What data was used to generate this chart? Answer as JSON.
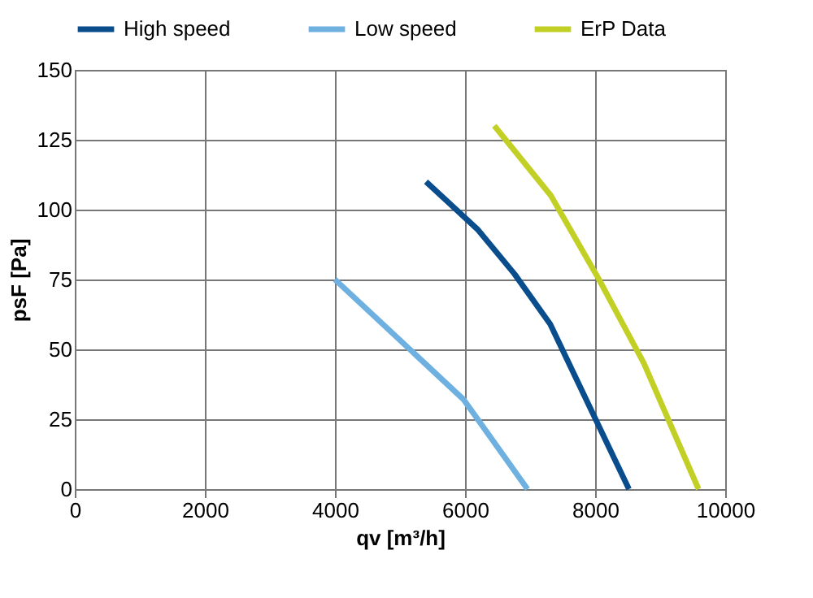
{
  "chart_data": {
    "type": "line",
    "xlabel": "qv [m³/h]",
    "ylabel": "psF [Pa]",
    "xlim": [
      0,
      10000
    ],
    "xticks": [
      0,
      2000,
      4000,
      6000,
      8000,
      10000
    ],
    "ylim": [
      0,
      150
    ],
    "yticks": [
      0,
      25,
      50,
      75,
      100,
      125,
      150
    ],
    "grid": true,
    "legend": "top",
    "marker": "none",
    "line_style": "solid",
    "series": [
      {
        "name": "High speed",
        "color": "#0a4d8c",
        "x": [
          5400,
          6190,
          6760,
          7310,
          8520
        ],
        "values": [
          110,
          93,
          77,
          59,
          0
        ]
      },
      {
        "name": "Low speed",
        "color": "#6eb0e0",
        "x": [
          4000,
          5980,
          6960
        ],
        "values": [
          75,
          32,
          0
        ]
      },
      {
        "name": "ErP Data",
        "color": "#c2d025",
        "x": [
          6450,
          7320,
          8060,
          8750,
          9590
        ],
        "values": [
          130,
          105,
          75,
          45,
          0
        ]
      }
    ]
  }
}
